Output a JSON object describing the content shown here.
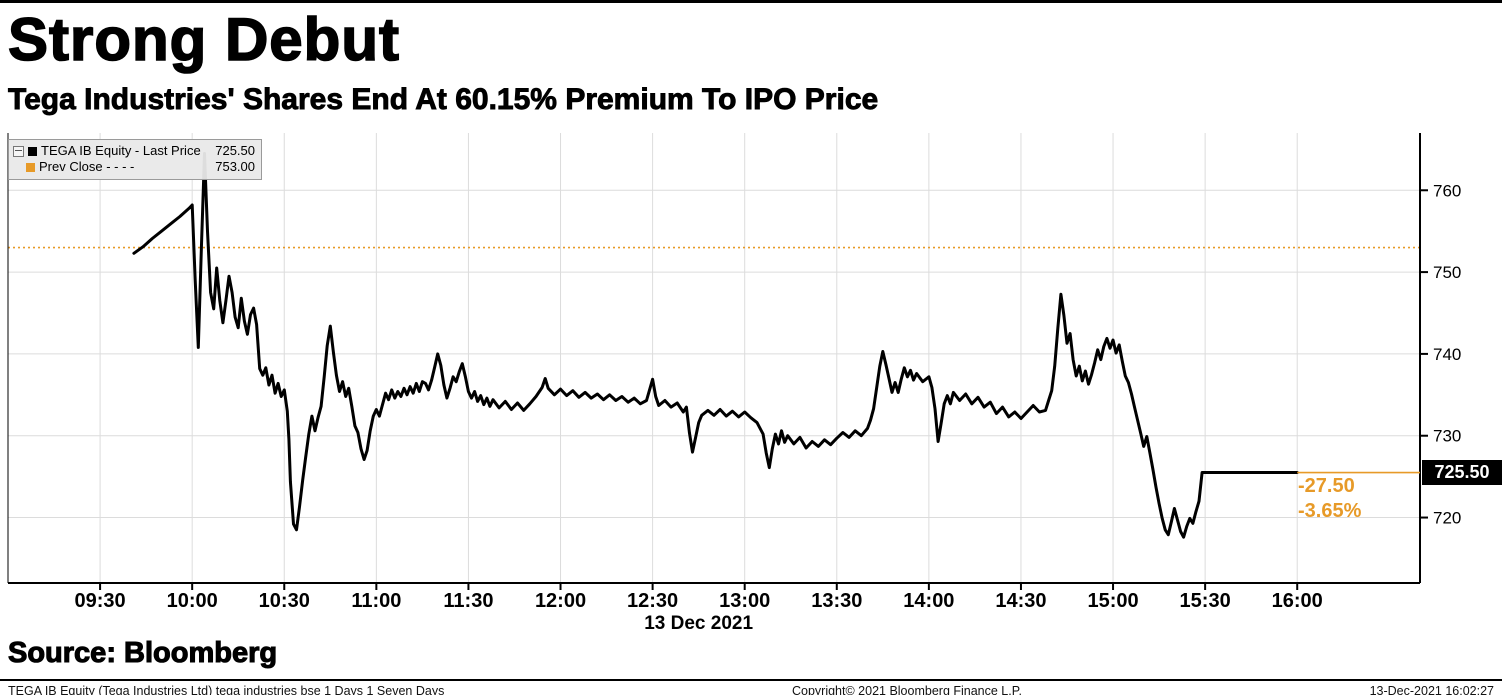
{
  "header": {
    "title": "Strong Debut",
    "subtitle": "Tega Industries' Shares End At 60.15% Premium To IPO Price"
  },
  "legend": {
    "series1": {
      "label": "TEGA IB Equity - Last Price",
      "value": "725.50",
      "color": "#000000"
    },
    "series2": {
      "label": "Prev Close - - - -",
      "value": "753.00",
      "color": "#e79a28"
    }
  },
  "annotations": {
    "last_price_badge": "725.50",
    "change_abs": "-27.50",
    "change_pct": "-3.65%"
  },
  "source": {
    "label": "Source: Bloomberg"
  },
  "footer": {
    "left": "TEGA IB Equity (Tega Industries Ltd) tega industries bse 1 Days 1 Seven Days",
    "center": "Copyright© 2021 Bloomberg Finance L.P.",
    "right": "13-Dec-2021 16:02:27"
  },
  "chart_data": {
    "type": "line",
    "title": "Strong Debut",
    "subtitle": "Tega Industries' Shares End At 60.15% Premium To IPO Price",
    "line_color": "#000000",
    "prev_close_color": "#e79a28",
    "grid_color": "#dcdcdc",
    "prev_close": 753.0,
    "last_price": 725.5,
    "x_axis": {
      "label": "13 Dec 2021",
      "tick_labels": [
        "09:30",
        "10:00",
        "10:30",
        "11:00",
        "11:30",
        "12:00",
        "12:30",
        "13:00",
        "13:30",
        "14:00",
        "14:30",
        "15:00",
        "15:30",
        "16:00"
      ],
      "tick_minutes": [
        570,
        600,
        630,
        660,
        690,
        720,
        750,
        780,
        810,
        840,
        870,
        900,
        930,
        960
      ],
      "domain_minutes": [
        540,
        1000
      ]
    },
    "y_axis": {
      "side": "right",
      "ticks": [
        720,
        730,
        740,
        750,
        760
      ],
      "range": [
        712,
        767
      ]
    },
    "series": [
      {
        "name": "TEGA IB Equity - Last Price",
        "points": [
          [
            581,
            752.3
          ],
          [
            584,
            753.1
          ],
          [
            587,
            754.1
          ],
          [
            590,
            755.0
          ],
          [
            593,
            755.9
          ],
          [
            596,
            756.8
          ],
          [
            599,
            757.8
          ],
          [
            600,
            758.2
          ],
          [
            601,
            749.0
          ],
          [
            602,
            740.8
          ],
          [
            603,
            753.0
          ],
          [
            604,
            764.5
          ],
          [
            605,
            755.0
          ],
          [
            606,
            747.5
          ],
          [
            607,
            745.5
          ],
          [
            608,
            750.5
          ],
          [
            609,
            746.5
          ],
          [
            610,
            743.8
          ],
          [
            611,
            746.5
          ],
          [
            612,
            749.5
          ],
          [
            613,
            747.5
          ],
          [
            614,
            744.5
          ],
          [
            615,
            743.2
          ],
          [
            616,
            746.8
          ],
          [
            617,
            744.0
          ],
          [
            618,
            742.4
          ],
          [
            619,
            744.8
          ],
          [
            620,
            745.6
          ],
          [
            621,
            743.6
          ],
          [
            622,
            738.2
          ],
          [
            623,
            737.4
          ],
          [
            624,
            738.3
          ],
          [
            625,
            736.2
          ],
          [
            626,
            737.4
          ],
          [
            627,
            735.2
          ],
          [
            628,
            736.4
          ],
          [
            629,
            734.8
          ],
          [
            630,
            735.6
          ],
          [
            631,
            733.0
          ],
          [
            631.5,
            729.6
          ],
          [
            632,
            724.4
          ],
          [
            633,
            719.2
          ],
          [
            634,
            718.5
          ],
          [
            635,
            721.4
          ],
          [
            636,
            724.6
          ],
          [
            637,
            727.4
          ],
          [
            638,
            730.2
          ],
          [
            639,
            732.4
          ],
          [
            640,
            730.6
          ],
          [
            641,
            732.2
          ],
          [
            642,
            733.6
          ],
          [
            643,
            737.2
          ],
          [
            644,
            741.0
          ],
          [
            645,
            743.4
          ],
          [
            646,
            740.2
          ],
          [
            647,
            737.4
          ],
          [
            648,
            735.4
          ],
          [
            649,
            736.6
          ],
          [
            650,
            734.8
          ],
          [
            651,
            735.8
          ],
          [
            652,
            733.6
          ],
          [
            653,
            731.2
          ],
          [
            654,
            730.4
          ],
          [
            655,
            728.4
          ],
          [
            656,
            727.1
          ],
          [
            657,
            728.2
          ],
          [
            658,
            730.6
          ],
          [
            659,
            732.4
          ],
          [
            660,
            733.2
          ],
          [
            661,
            732.4
          ],
          [
            662,
            733.8
          ],
          [
            663,
            735.2
          ],
          [
            664,
            734.4
          ],
          [
            665,
            735.6
          ],
          [
            666,
            734.6
          ],
          [
            667,
            735.4
          ],
          [
            668,
            734.8
          ],
          [
            669,
            735.8
          ],
          [
            670,
            735.0
          ],
          [
            671,
            736.0
          ],
          [
            672,
            735.2
          ],
          [
            673,
            736.4
          ],
          [
            674,
            735.4
          ],
          [
            675,
            736.6
          ],
          [
            676,
            736.4
          ],
          [
            677,
            735.6
          ],
          [
            678,
            736.8
          ],
          [
            679,
            738.4
          ],
          [
            680,
            740.0
          ],
          [
            681,
            738.6
          ],
          [
            682,
            736.2
          ],
          [
            683,
            734.6
          ],
          [
            684,
            735.8
          ],
          [
            685,
            737.2
          ],
          [
            686,
            736.6
          ],
          [
            687,
            737.8
          ],
          [
            688,
            738.8
          ],
          [
            689,
            737.2
          ],
          [
            690,
            735.4
          ],
          [
            691,
            734.6
          ],
          [
            692,
            735.4
          ],
          [
            693,
            734.2
          ],
          [
            694,
            734.9
          ],
          [
            695,
            733.8
          ],
          [
            696,
            734.6
          ],
          [
            697,
            733.6
          ],
          [
            698,
            734.4
          ],
          [
            700,
            733.4
          ],
          [
            702,
            734.2
          ],
          [
            704,
            733.2
          ],
          [
            706,
            734.0
          ],
          [
            708,
            733.1
          ],
          [
            710,
            733.9
          ],
          [
            712,
            734.8
          ],
          [
            714,
            735.9
          ],
          [
            715,
            737.0
          ],
          [
            716,
            735.8
          ],
          [
            718,
            735.0
          ],
          [
            720,
            735.7
          ],
          [
            722,
            734.9
          ],
          [
            724,
            735.5
          ],
          [
            726,
            734.7
          ],
          [
            728,
            735.3
          ],
          [
            730,
            734.6
          ],
          [
            732,
            735.1
          ],
          [
            734,
            734.4
          ],
          [
            736,
            735.0
          ],
          [
            738,
            734.3
          ],
          [
            740,
            734.8
          ],
          [
            742,
            734.1
          ],
          [
            744,
            734.6
          ],
          [
            746,
            733.9
          ],
          [
            748,
            734.3
          ],
          [
            750,
            736.9
          ],
          [
            751,
            734.8
          ],
          [
            752,
            733.7
          ],
          [
            754,
            734.3
          ],
          [
            756,
            733.5
          ],
          [
            758,
            734.0
          ],
          [
            760,
            732.9
          ],
          [
            761,
            733.5
          ],
          [
            762,
            730.4
          ],
          [
            763,
            728.0
          ],
          [
            764,
            729.8
          ],
          [
            765,
            731.6
          ],
          [
            766,
            732.5
          ],
          [
            768,
            733.1
          ],
          [
            770,
            732.5
          ],
          [
            772,
            733.2
          ],
          [
            774,
            732.4
          ],
          [
            776,
            733.0
          ],
          [
            778,
            732.3
          ],
          [
            780,
            732.9
          ],
          [
            782,
            732.2
          ],
          [
            784,
            731.6
          ],
          [
            786,
            730.2
          ],
          [
            787,
            727.9
          ],
          [
            788,
            726.1
          ],
          [
            789,
            728.4
          ],
          [
            790,
            730.2
          ],
          [
            791,
            729.0
          ],
          [
            792,
            730.6
          ],
          [
            793,
            729.2
          ],
          [
            794,
            730.0
          ],
          [
            796,
            729.0
          ],
          [
            798,
            729.8
          ],
          [
            800,
            728.5
          ],
          [
            802,
            729.3
          ],
          [
            804,
            728.7
          ],
          [
            806,
            729.5
          ],
          [
            808,
            728.9
          ],
          [
            810,
            729.7
          ],
          [
            812,
            730.4
          ],
          [
            814,
            729.8
          ],
          [
            816,
            730.6
          ],
          [
            818,
            730.0
          ],
          [
            820,
            730.9
          ],
          [
            821,
            731.9
          ],
          [
            822,
            733.3
          ],
          [
            823,
            735.9
          ],
          [
            824,
            738.5
          ],
          [
            825,
            740.3
          ],
          [
            826,
            738.7
          ],
          [
            827,
            737.0
          ],
          [
            828,
            735.3
          ],
          [
            829,
            736.5
          ],
          [
            830,
            735.3
          ],
          [
            831,
            736.9
          ],
          [
            832,
            738.3
          ],
          [
            833,
            737.2
          ],
          [
            834,
            738.0
          ],
          [
            835,
            736.8
          ],
          [
            836,
            737.6
          ],
          [
            838,
            736.6
          ],
          [
            840,
            737.2
          ],
          [
            841,
            735.9
          ],
          [
            842,
            733.3
          ],
          [
            843,
            729.3
          ],
          [
            844,
            731.5
          ],
          [
            845,
            733.9
          ],
          [
            846,
            734.9
          ],
          [
            847,
            733.9
          ],
          [
            848,
            735.3
          ],
          [
            850,
            734.3
          ],
          [
            852,
            735.1
          ],
          [
            854,
            733.9
          ],
          [
            856,
            734.7
          ],
          [
            858,
            733.5
          ],
          [
            860,
            734.1
          ],
          [
            862,
            732.7
          ],
          [
            864,
            733.5
          ],
          [
            866,
            732.3
          ],
          [
            868,
            732.9
          ],
          [
            870,
            732.1
          ],
          [
            872,
            732.9
          ],
          [
            874,
            733.7
          ],
          [
            876,
            732.9
          ],
          [
            878,
            733.1
          ],
          [
            879,
            734.3
          ],
          [
            880,
            735.5
          ],
          [
            881,
            738.5
          ],
          [
            882,
            743.1
          ],
          [
            883,
            747.3
          ],
          [
            884,
            744.7
          ],
          [
            885,
            741.3
          ],
          [
            886,
            742.5
          ],
          [
            887,
            739.3
          ],
          [
            888,
            737.3
          ],
          [
            889,
            738.5
          ],
          [
            890,
            736.7
          ],
          [
            891,
            737.9
          ],
          [
            892,
            736.3
          ],
          [
            893,
            737.5
          ],
          [
            894,
            738.9
          ],
          [
            895,
            740.5
          ],
          [
            896,
            739.3
          ],
          [
            897,
            740.9
          ],
          [
            898,
            741.9
          ],
          [
            899,
            740.7
          ],
          [
            900,
            741.7
          ],
          [
            901,
            740.1
          ],
          [
            902,
            741.1
          ],
          [
            903,
            739.1
          ],
          [
            904,
            737.3
          ],
          [
            905,
            736.5
          ],
          [
            906,
            735.1
          ],
          [
            907,
            733.5
          ],
          [
            908,
            731.9
          ],
          [
            909,
            730.3
          ],
          [
            910,
            728.7
          ],
          [
            911,
            729.9
          ],
          [
            912,
            727.9
          ],
          [
            913,
            725.9
          ],
          [
            914,
            723.7
          ],
          [
            915,
            721.7
          ],
          [
            916,
            719.9
          ],
          [
            917,
            718.5
          ],
          [
            918,
            717.9
          ],
          [
            919,
            719.5
          ],
          [
            920,
            721.1
          ],
          [
            921,
            719.7
          ],
          [
            922,
            718.3
          ],
          [
            923,
            717.6
          ],
          [
            924,
            718.9
          ],
          [
            925,
            719.9
          ],
          [
            926,
            719.3
          ],
          [
            927,
            720.7
          ],
          [
            928,
            722.0
          ],
          [
            929,
            725.5
          ],
          [
            960,
            725.5
          ]
        ]
      }
    ]
  }
}
